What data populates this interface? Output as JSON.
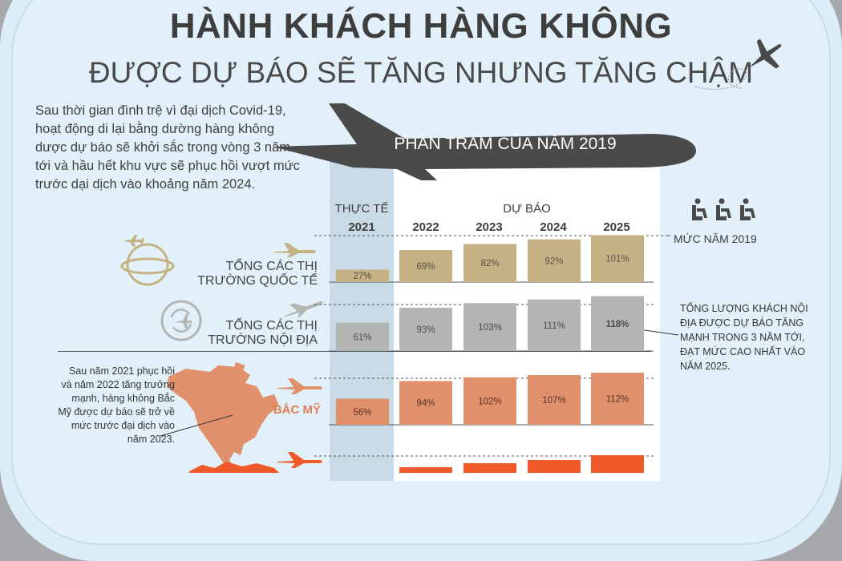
{
  "title": "HÀNH KHÁCH HÀNG KHÔNG",
  "subtitle": "ĐƯỢC DỰ BÁO SẼ TĂNG NHƯNG TĂNG CHẬM",
  "intro": "Sau thời gian đình trệ vì đại dịch Covid-19, hoạt động di lại bằng dường hàng không dược dự báo sẽ khởi sắc trong vòng 3 năm tới và hầu hết khu vực sẽ phục hồi vượt mức trước dại dịch vào khoảng năm 2024.",
  "plane_label": "PHẦN TRĂM CỦA NĂM 2019",
  "header": {
    "actual": "THỰC TẾ",
    "forecast": "DỰ BÁO",
    "years": [
      "2021",
      "2022",
      "2023",
      "2024",
      "2025"
    ]
  },
  "legend_2019": "MỨC NĂM 2019",
  "rows": [
    {
      "label_line1": "TỔNG CÁC THỊ",
      "label_line2": "TRƯỜNG QUỐC TẾ"
    },
    {
      "label_line1": "TỔNG CÁC THỊ",
      "label_line2": "TRƯỜNG NỘI ĐỊA"
    },
    {
      "label_line1": "BẮC MỸ",
      "label_line2": ""
    }
  ],
  "notes": {
    "domestic": [
      "TỔNG LƯỢNG KHÁCH NỘI",
      "ĐỊA ĐƯỢC DỰ BÁO TĂNG",
      "MẠNH TRONG 3 NĂM TỚI,",
      "ĐẠT MỨC CAO NHẤT VÀO",
      "NĂM 2025."
    ],
    "north_america": [
      "Sau năm 2021 phục hồi",
      "và năm 2022 tăng trưởng",
      "mạnh, hàng không Bắc",
      "Mỹ được dự báo sẽ trở về",
      "mức trước đại dịch vào",
      "năm 2023."
    ]
  },
  "colors": {
    "international": "#c4b284",
    "domestic": "#b3b5b3",
    "north_america": "#e0906b",
    "fourth": "#f05a2a",
    "actual_col": "#c9dbe6",
    "dark": "#4a4a4a"
  },
  "chart_data": {
    "type": "bar",
    "categories": [
      "2021",
      "2022",
      "2023",
      "2024",
      "2025"
    ],
    "series": [
      {
        "name": "TỔNG CÁC THỊ TRƯỜNG QUỐC TẾ",
        "values": [
          27,
          69,
          82,
          92,
          101
        ],
        "labels": [
          "27%",
          "69%",
          "82%",
          "92%",
          "101%"
        ]
      },
      {
        "name": "TỔNG CÁC THỊ TRƯỜNG NỘI ĐỊA",
        "values": [
          61,
          93,
          103,
          111,
          118
        ],
        "labels": [
          "61%",
          "93%",
          "103%",
          "111%",
          "118%"
        ]
      },
      {
        "name": "BẮC MỸ",
        "values": [
          56,
          94,
          102,
          107,
          112
        ],
        "labels": [
          "56%",
          "94%",
          "102%",
          "107%",
          "112%"
        ]
      }
    ],
    "reference_line": 100,
    "ylabel": ""
  }
}
